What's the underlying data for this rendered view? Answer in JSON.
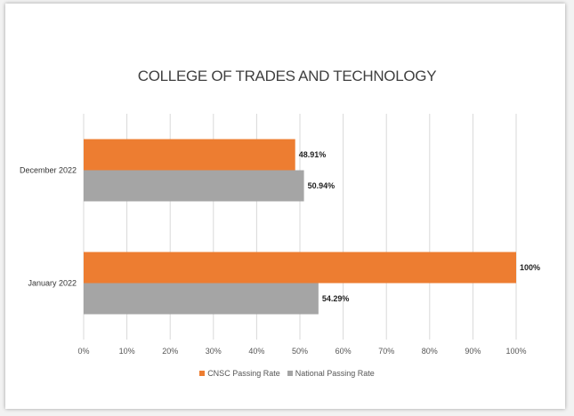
{
  "chart_data": {
    "type": "bar",
    "orientation": "horizontal",
    "title": "COLLEGE OF TRADES AND TECHNOLOGY",
    "categories": [
      "December 2022",
      "January 2022"
    ],
    "series": [
      {
        "name": "CNSC Passing Rate",
        "values": [
          48.91,
          100
        ],
        "labels": [
          "48.91%",
          "100%"
        ],
        "color": "#ed7d31"
      },
      {
        "name": "National Passing Rate",
        "values": [
          50.94,
          54.29
        ],
        "labels": [
          "50.94%",
          "54.29%"
        ],
        "color": "#a5a5a5"
      }
    ],
    "xlim": [
      0,
      100
    ],
    "xticks": [
      "0%",
      "10%",
      "20%",
      "30%",
      "40%",
      "50%",
      "60%",
      "70%",
      "80%",
      "90%",
      "100%"
    ],
    "grid": true,
    "legend_position": "bottom"
  }
}
